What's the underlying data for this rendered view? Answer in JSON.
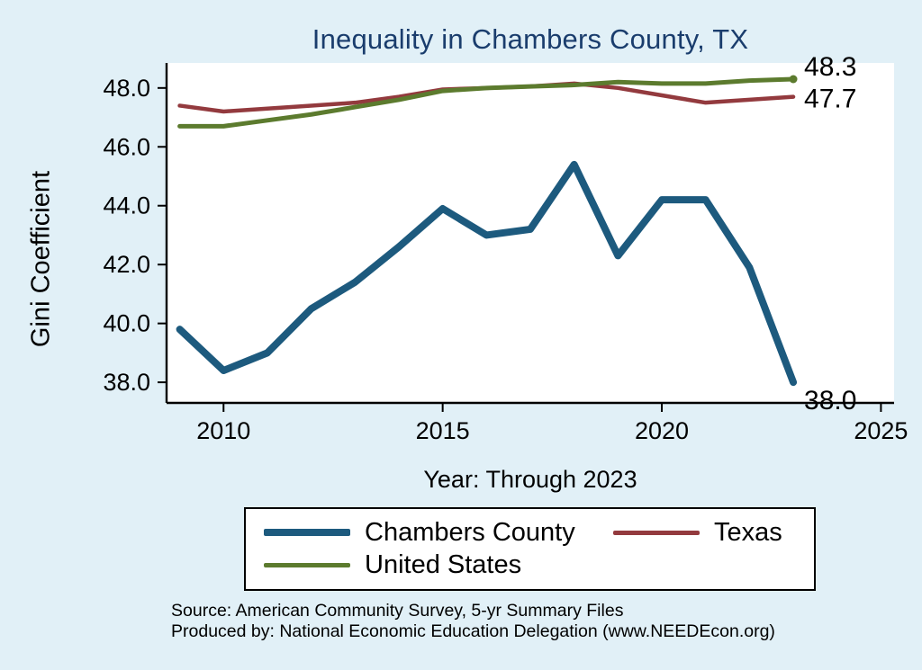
{
  "page": {
    "background": "#e1f0f7"
  },
  "chart_data": {
    "type": "line",
    "title": "Inequality in Chambers County, TX",
    "title_color": "#1a3d6d",
    "xlabel": "Year: Through 2023",
    "ylabel": "Gini Coefficient",
    "grid": false,
    "legend_position": "bottom",
    "plot_background": "#ffffff",
    "axis_color": "#000000",
    "xlim": [
      2008.7,
      2025.3
    ],
    "ylim": [
      37.3,
      48.85
    ],
    "x": [
      2009,
      2010,
      2011,
      2012,
      2013,
      2014,
      2015,
      2016,
      2017,
      2018,
      2019,
      2020,
      2021,
      2022,
      2023
    ],
    "xticks": [
      {
        "v": 2010,
        "label": "2010"
      },
      {
        "v": 2015,
        "label": "2015"
      },
      {
        "v": 2020,
        "label": "2020"
      },
      {
        "v": 2025,
        "label": "2025"
      }
    ],
    "yticks": [
      {
        "v": 38,
        "label": "38.0"
      },
      {
        "v": 40,
        "label": "40.0"
      },
      {
        "v": 42,
        "label": "42.0"
      },
      {
        "v": 44,
        "label": "44.0"
      },
      {
        "v": 46,
        "label": "46.0"
      },
      {
        "v": 48,
        "label": "48.0"
      }
    ],
    "series": [
      {
        "name": "Chambers County",
        "color": "#1d5a7e",
        "line_width": 8,
        "end_label": "38.0",
        "end_marker": false,
        "values": [
          39.8,
          38.4,
          39.0,
          40.5,
          41.4,
          42.6,
          43.9,
          43.0,
          43.2,
          45.4,
          42.3,
          44.2,
          44.2,
          41.9,
          38.0
        ]
      },
      {
        "name": "Texas",
        "color": "#933a3e",
        "line_width": 4.5,
        "end_label": "47.7",
        "end_marker": false,
        "values": [
          47.4,
          47.2,
          47.3,
          47.4,
          47.5,
          47.7,
          47.95,
          48.0,
          48.05,
          48.15,
          48.0,
          47.75,
          47.5,
          47.6,
          47.7
        ]
      },
      {
        "name": "United States",
        "color": "#5c7b2e",
        "line_width": 5,
        "end_label": "48.3",
        "end_marker": true,
        "values": [
          46.7,
          46.7,
          46.9,
          47.1,
          47.35,
          47.6,
          47.9,
          48.0,
          48.05,
          48.1,
          48.2,
          48.15,
          48.15,
          48.25,
          48.3
        ]
      }
    ]
  },
  "source": {
    "line1": "Source: American Community Survey, 5-yr Summary Files",
    "line2": "Produced by: National Economic Education Delegation (www.NEEDEcon.org)"
  }
}
